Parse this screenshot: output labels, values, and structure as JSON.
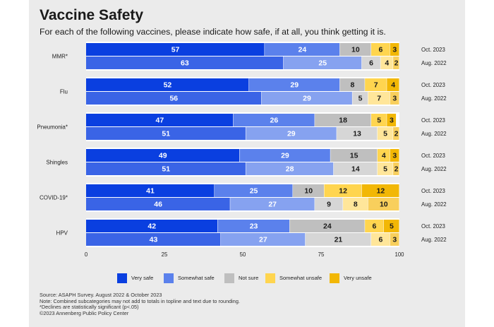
{
  "title": "Vaccine Safety",
  "subtitle": "For each of the following vaccines, please indicate how safe, if at all, you think getting it is.",
  "chart_data": {
    "type": "bar",
    "stacked": true,
    "orientation": "horizontal",
    "title": "Vaccine Safety",
    "xlim": [
      0,
      100
    ],
    "xticks": [
      0,
      25,
      50,
      75,
      100
    ],
    "categories": [
      "MMR*",
      "Flu",
      "Pneumonia*",
      "Shingles",
      "COVID-19*",
      "HPV"
    ],
    "periods": [
      "Oct. 2023",
      "Aug. 2022"
    ],
    "series_names": [
      "Very safe",
      "Somewhat safe",
      "Not sure",
      "Somewhat unsafe",
      "Very unsafe"
    ],
    "colors": {
      "oct": [
        "#0a3fe0",
        "#5b81ec",
        "#bfbfbf",
        "#ffd54f",
        "#f2b705"
      ],
      "aug": [
        "#3a64e6",
        "#86a2f0",
        "#d6d6d6",
        "#ffe69a",
        "#f8cf5c"
      ]
    },
    "groups": [
      {
        "label": "MMR*",
        "oct": [
          57,
          24,
          10,
          6,
          3
        ],
        "aug": [
          63,
          25,
          6,
          4,
          2
        ]
      },
      {
        "label": "Flu",
        "oct": [
          52,
          29,
          8,
          7,
          4
        ],
        "aug": [
          56,
          29,
          5,
          7,
          3
        ]
      },
      {
        "label": "Pneumonia*",
        "oct": [
          47,
          26,
          18,
          5,
          3
        ],
        "aug": [
          51,
          29,
          13,
          5,
          2
        ]
      },
      {
        "label": "Shingles",
        "oct": [
          49,
          29,
          15,
          4,
          3
        ],
        "aug": [
          51,
          28,
          14,
          5,
          2
        ]
      },
      {
        "label": "COVID-19*",
        "oct": [
          41,
          25,
          10,
          12,
          12
        ],
        "aug": [
          46,
          27,
          9,
          8,
          10
        ]
      },
      {
        "label": "HPV",
        "oct": [
          42,
          23,
          24,
          6,
          5
        ],
        "aug": [
          43,
          27,
          21,
          6,
          3
        ]
      }
    ]
  },
  "legend": [
    {
      "label": "Very safe",
      "color": "#0a3fe0"
    },
    {
      "label": "Somewhat safe",
      "color": "#5b81ec"
    },
    {
      "label": "Not sure",
      "color": "#bfbfbf"
    },
    {
      "label": "Somewhat unsafe",
      "color": "#ffd54f"
    },
    {
      "label": "Very unsafe",
      "color": "#f2b705"
    }
  ],
  "notes": [
    "Source: ASAPH Survey. August 2022 & October 2023",
    "Note: Combined subcategories may not add to totals in topline and text due to rounding.",
    "*Declines are statistically significant (p<.05)",
    "©2023 Annenberg Public Policy Center"
  ]
}
